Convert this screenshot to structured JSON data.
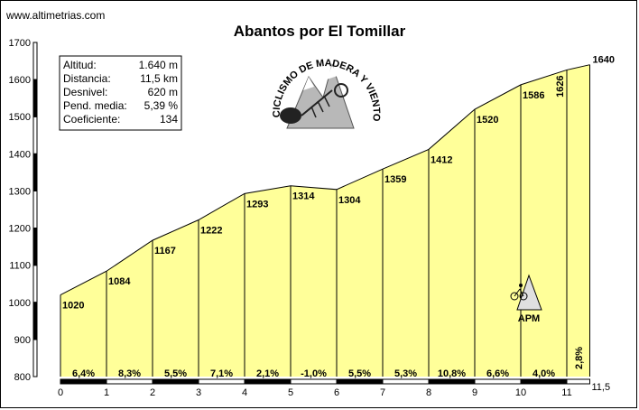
{
  "source": "www.altimetrias.com",
  "chart_data": {
    "type": "area",
    "title": "Abantos por El Tomillar",
    "x": [
      0,
      1,
      2,
      3,
      4,
      5,
      6,
      7,
      8,
      9,
      10,
      11,
      11.5
    ],
    "x_tick_labels": [
      "0",
      "1",
      "2",
      "3",
      "4",
      "5",
      "6",
      "7",
      "8",
      "9",
      "10",
      "11",
      "11,5"
    ],
    "altitudes": [
      1020,
      1084,
      1167,
      1222,
      1293,
      1314,
      1304,
      1359,
      1412,
      1520,
      1586,
      1626,
      1640
    ],
    "altitude_labels": [
      "1020",
      "1084",
      "1167",
      "1222",
      "1293",
      "1314",
      "1304",
      "1359",
      "1412",
      "1520",
      "1586",
      "1626",
      "1640"
    ],
    "gradients": [
      "6,4%",
      "8,3%",
      "5,5%",
      "7,1%",
      "2,1%",
      "-1,0%",
      "5,5%",
      "5,3%",
      "10,8%",
      "6,6%",
      "4,0%",
      "2,8%"
    ],
    "ylim": [
      800,
      1700
    ],
    "y_ticks": [
      800,
      900,
      1000,
      1100,
      1200,
      1300,
      1400,
      1500,
      1600,
      1700
    ],
    "y_tick_labels": [
      "800",
      "900",
      "1000",
      "1100",
      "1200",
      "1300",
      "1400",
      "1500",
      "1600",
      "1700"
    ],
    "fill_color": "#ffff99",
    "xlabel": "",
    "ylabel": ""
  },
  "stats": [
    {
      "label": "Altitud:",
      "value": "1.640 m"
    },
    {
      "label": "Distancia:",
      "value": "11,5 km"
    },
    {
      "label": "Desnivel:",
      "value": "620 m"
    },
    {
      "label": "Pend. media:",
      "value": "5,39 %"
    },
    {
      "label": "Coeficiente:",
      "value": "134"
    }
  ],
  "logo": {
    "text": "CICLISMO DE MADERA Y VIENTO",
    "icon": "mountain-fish-logo-icon"
  },
  "marker": {
    "text": "APM",
    "icon": "cyclist-mountain-icon"
  }
}
